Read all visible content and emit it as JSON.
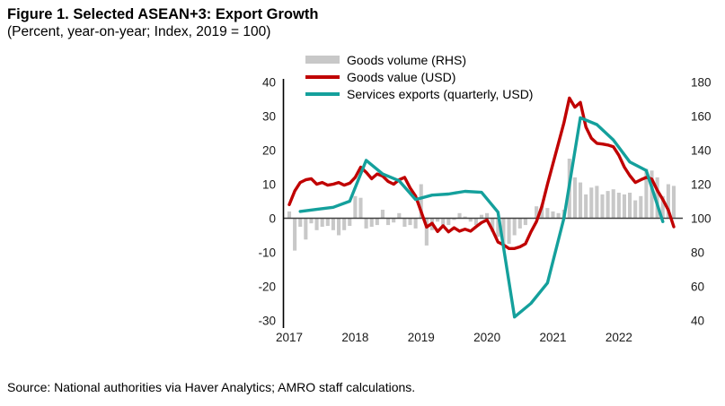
{
  "header": {
    "title": "Figure 1. Selected ASEAN+3: Export Growth",
    "subtitle": "(Percent, year-on-year; Index, 2019 = 100)"
  },
  "footer": {
    "source": "Source: National authorities via Haver Analytics; AMRO staff calculations."
  },
  "colors": {
    "goods_volume_bar": "#c8c8c8",
    "goods_value_line": "#c00000",
    "services_exports_line": "#14a09c",
    "axis_line": "#000000",
    "zero_line": "#404040",
    "tick_text": "#1a1a1a"
  },
  "legend": [
    {
      "label": "Goods volume (RHS)",
      "type": "bar",
      "color": "#c8c8c8"
    },
    {
      "label": "Goods value (USD)",
      "type": "line",
      "color": "#c00000"
    },
    {
      "label": "Services exports (quarterly, USD)",
      "type": "line",
      "color": "#14a09c"
    }
  ],
  "chart_data": {
    "type": "bar+line combo",
    "x_start": "2017-01",
    "x_frequency": "monthly",
    "x_labels": [
      "2017",
      "2018",
      "2019",
      "2020",
      "2021",
      "2022"
    ],
    "left_axis": {
      "ticks": [
        40,
        30,
        20,
        10,
        0,
        -10,
        -20,
        -30
      ],
      "min": -30,
      "max": 40
    },
    "right_axis": {
      "ticks": [
        180,
        160,
        140,
        120,
        100,
        80,
        60,
        40
      ],
      "min": 40,
      "max": 180
    },
    "grid": "off",
    "legend_position": "top",
    "series": [
      {
        "name": "Goods volume (RHS)",
        "type": "bar",
        "axis": "right",
        "baseline": 100,
        "frequency": "monthly",
        "values": [
          104,
          81,
          95,
          87.5,
          97,
          93,
          95,
          95.5,
          93,
          90,
          93,
          95.5,
          113,
          112,
          94,
          95,
          96,
          105,
          96,
          97.5,
          103,
          95,
          96,
          94,
          120,
          84,
          93,
          98,
          95,
          96,
          99,
          103,
          101,
          98,
          96,
          102,
          103,
          92,
          89,
          85,
          85,
          90,
          94,
          96,
          100,
          107,
          108,
          106,
          104,
          103,
          105,
          135,
          124,
          121,
          114,
          118,
          119,
          114,
          116,
          117,
          115,
          114,
          115,
          110.5,
          113,
          129,
          128,
          124,
          113,
          120,
          119
        ]
      },
      {
        "name": "Goods value (USD)",
        "type": "line",
        "axis": "left",
        "frequency": "monthly",
        "values": [
          4,
          8,
          10.5,
          11.3,
          11.6,
          10,
          10.5,
          9.7,
          10,
          10.5,
          9.7,
          10.3,
          12,
          15,
          13.5,
          11.6,
          13,
          12.4,
          10.8,
          10,
          11.3,
          12,
          8.9,
          6.5,
          2,
          -2.6,
          -1.5,
          -3.9,
          -2.2,
          -4,
          -2.8,
          -3.8,
          -3.2,
          -3.8,
          -2.5,
          -1.3,
          -0.5,
          -3.5,
          -7,
          -7.8,
          -8.9,
          -8.9,
          -8.4,
          -7.5,
          -4,
          -1,
          3.5,
          10,
          16,
          22,
          28,
          35.3,
          32.6,
          34,
          26.8,
          23.5,
          22,
          21.8,
          21.5,
          21,
          18.5,
          15,
          12.5,
          10.5,
          11.3,
          12,
          11.5,
          8.2,
          5.5,
          2.4,
          -2.5
        ]
      },
      {
        "name": "Services exports (quarterly, USD)",
        "type": "line",
        "axis": "left",
        "frequency": "quarterly",
        "first_month_index": 2,
        "month_step": 3,
        "values": [
          2,
          2.6,
          3.2,
          5,
          17,
          13,
          11,
          5.5,
          6.8,
          7.1,
          7.9,
          7.6,
          1.8,
          -29,
          -25,
          -19,
          0,
          29.5,
          27.5,
          23,
          16.5,
          14,
          -1
        ]
      }
    ]
  }
}
